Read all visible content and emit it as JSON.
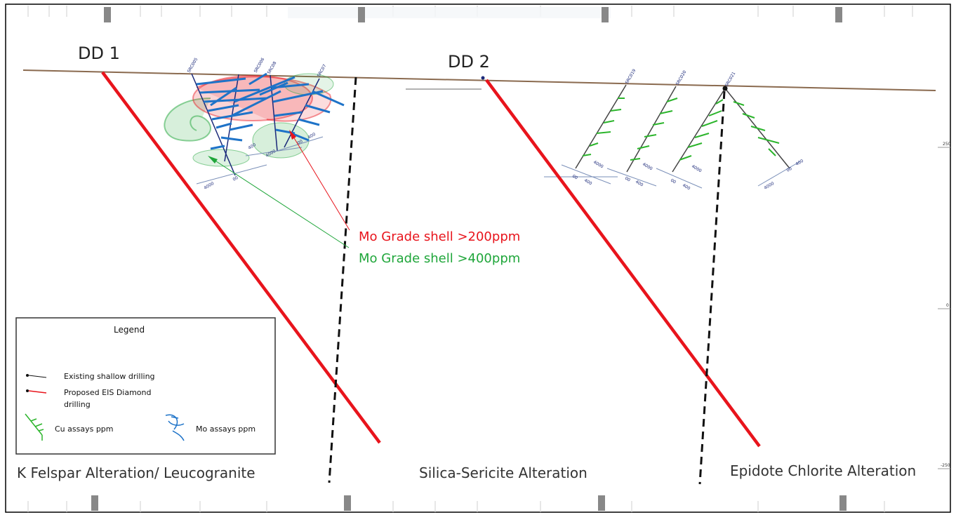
{
  "drill_labels": {
    "dd1": "DD 1",
    "dd2": "DD 2"
  },
  "shell_labels": {
    "mo200": "Mo Grade shell >200ppm",
    "mo400": "Mo Grade shell >400ppm"
  },
  "zone_labels": {
    "k_felspar": "K Felspar Alteration/ Leucogranite",
    "silica_sericite": "Silica-Sericite Alteration",
    "epidote_chlorite": "Epidote Chlorite Alteration"
  },
  "legend": {
    "title": "Legend",
    "existing": "Existing shallow drilling",
    "proposed_line1": "Proposed EIS Diamond",
    "proposed_line2": "drilling",
    "cu": "Cu assays ppm",
    "mo": "Mo assays ppm"
  },
  "elevation_ticks": {
    "t250": "250",
    "t0": "0",
    "tm250": "-250"
  },
  "colors": {
    "proposed": "#e8141c",
    "mo200": "#e8141c",
    "mo400": "#1fa63a",
    "surface": "#8a6a4f",
    "fault": "#111111",
    "mo_assay": "#1e73c8",
    "cu_assay": "#2cb52c"
  }
}
